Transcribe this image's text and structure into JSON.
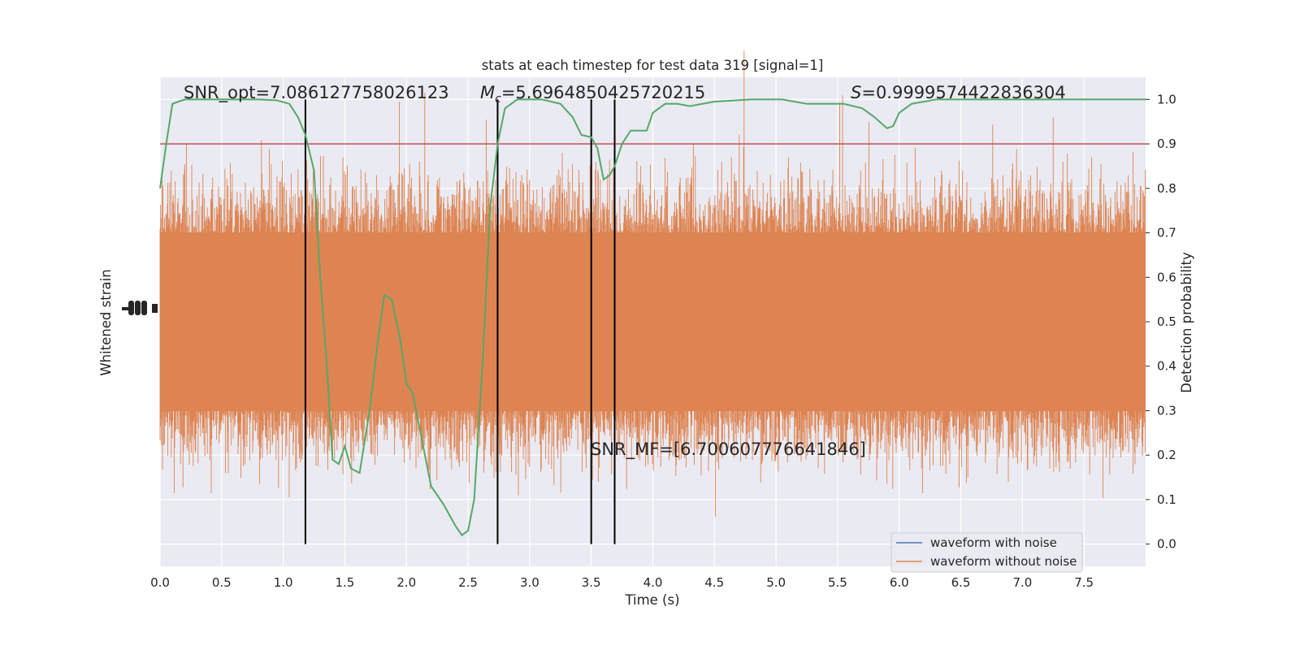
{
  "chart_data": {
    "type": "line",
    "title": "stats at each timestep for test data 319 [signal=1]",
    "xlabel": "Time (s)",
    "ylabel_left": "Whitened strain",
    "ylabel_right": "Detection probability",
    "xlim": [
      0,
      8
    ],
    "ylim_right": [
      -0.05,
      1.05
    ],
    "x_ticks": [
      "0.0",
      "0.5",
      "1.0",
      "1.5",
      "2.0",
      "2.5",
      "3.0",
      "3.5",
      "4.0",
      "4.5",
      "5.0",
      "5.5",
      "6.0",
      "6.5",
      "7.0",
      "7.5"
    ],
    "y_ticks_right": [
      "0.0",
      "0.1",
      "0.2",
      "0.3",
      "0.4",
      "0.5",
      "0.6",
      "0.7",
      "0.8",
      "0.9",
      "1.0"
    ],
    "annotations": {
      "snr_opt": "SNR_opt=7.086127758026123",
      "mc_symbol": "M",
      "mc_subscript": "c",
      "mc_value": "=5.6964850425720215",
      "s_symbol": "S",
      "s_value": "=0.9999574422836304",
      "snr_mf": "SNR_MF=[6.700607776641846]"
    },
    "threshold": {
      "value": 0.9,
      "color": "#c44e52"
    },
    "vertical_lines": [
      1.18,
      2.74,
      3.5,
      3.69
    ],
    "detection_probability": {
      "color": "#55a868",
      "points": [
        [
          0.0,
          0.8
        ],
        [
          0.05,
          0.9
        ],
        [
          0.1,
          0.99
        ],
        [
          0.2,
          1.0
        ],
        [
          0.4,
          1.0
        ],
        [
          0.6,
          1.0
        ],
        [
          0.8,
          1.0
        ],
        [
          0.95,
          0.998
        ],
        [
          1.05,
          0.99
        ],
        [
          1.12,
          0.96
        ],
        [
          1.18,
          0.92
        ],
        [
          1.25,
          0.84
        ],
        [
          1.3,
          0.6
        ],
        [
          1.35,
          0.42
        ],
        [
          1.4,
          0.19
        ],
        [
          1.45,
          0.18
        ],
        [
          1.5,
          0.22
        ],
        [
          1.55,
          0.17
        ],
        [
          1.62,
          0.16
        ],
        [
          1.7,
          0.3
        ],
        [
          1.77,
          0.46
        ],
        [
          1.82,
          0.56
        ],
        [
          1.88,
          0.55
        ],
        [
          1.95,
          0.46
        ],
        [
          2.0,
          0.36
        ],
        [
          2.05,
          0.34
        ],
        [
          2.1,
          0.27
        ],
        [
          2.2,
          0.13
        ],
        [
          2.3,
          0.09
        ],
        [
          2.4,
          0.04
        ],
        [
          2.45,
          0.02
        ],
        [
          2.5,
          0.03
        ],
        [
          2.55,
          0.1
        ],
        [
          2.62,
          0.42
        ],
        [
          2.68,
          0.76
        ],
        [
          2.74,
          0.9
        ],
        [
          2.8,
          0.98
        ],
        [
          2.9,
          1.0
        ],
        [
          3.1,
          1.0
        ],
        [
          3.25,
          0.99
        ],
        [
          3.35,
          0.96
        ],
        [
          3.42,
          0.92
        ],
        [
          3.5,
          0.915
        ],
        [
          3.55,
          0.89
        ],
        [
          3.6,
          0.82
        ],
        [
          3.65,
          0.83
        ],
        [
          3.69,
          0.85
        ],
        [
          3.75,
          0.9
        ],
        [
          3.82,
          0.93
        ],
        [
          3.95,
          0.93
        ],
        [
          4.0,
          0.97
        ],
        [
          4.1,
          0.99
        ],
        [
          4.2,
          0.99
        ],
        [
          4.3,
          0.985
        ],
        [
          4.5,
          0.995
        ],
        [
          4.8,
          1.0
        ],
        [
          5.05,
          1.0
        ],
        [
          5.15,
          0.995
        ],
        [
          5.25,
          0.99
        ],
        [
          5.4,
          0.99
        ],
        [
          5.55,
          0.99
        ],
        [
          5.7,
          0.98
        ],
        [
          5.8,
          0.96
        ],
        [
          5.9,
          0.935
        ],
        [
          5.95,
          0.94
        ],
        [
          6.0,
          0.97
        ],
        [
          6.1,
          0.99
        ],
        [
          6.3,
          1.0
        ],
        [
          6.6,
          1.0
        ],
        [
          7.0,
          1.0
        ],
        [
          7.5,
          1.0
        ],
        [
          8.0,
          1.0
        ]
      ]
    },
    "series": [
      {
        "name": "waveform with noise",
        "color": "#4c72b0"
      },
      {
        "name": "waveform without noise",
        "color": "#dd8452"
      }
    ],
    "legend_position": "lower-right",
    "background": "#eaeaf2",
    "grid": true
  }
}
